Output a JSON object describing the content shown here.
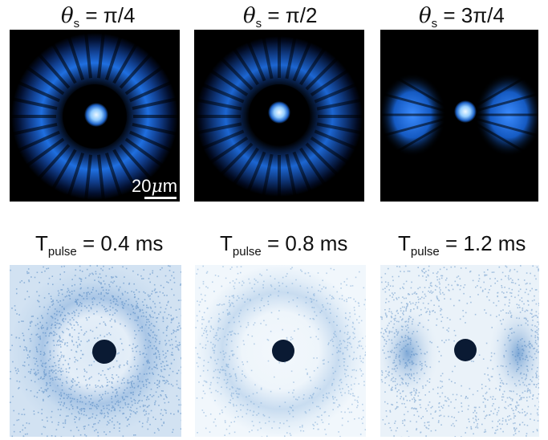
{
  "top_row": {
    "labels": [
      {
        "symbol": "θ",
        "subscript": "s",
        "rest": " = π/4"
      },
      {
        "symbol": "θ",
        "subscript": "s",
        "rest": " = π/2"
      },
      {
        "symbol": "θ",
        "subscript": "s",
        "rest": " = 3π/4"
      }
    ],
    "scalebar": {
      "number": "20",
      "unit_symbol": "μ",
      "unit_rest": "m"
    },
    "colors": {
      "background": "#000000",
      "ring": "#1f6fe0",
      "core": "#bfe6ff"
    }
  },
  "bottom_row": {
    "labels": [
      {
        "main": "T",
        "subscript": "pulse",
        "rest": " = 0.4 ms"
      },
      {
        "main": "T",
        "subscript": "pulse",
        "rest": " = 0.8 ms"
      },
      {
        "main": "T",
        "subscript": "pulse",
        "rest": " = 1.2 ms"
      }
    ],
    "colors": {
      "background": "#ffffff",
      "speckle": "#3a76b8",
      "core": "#0a1a33"
    }
  }
}
